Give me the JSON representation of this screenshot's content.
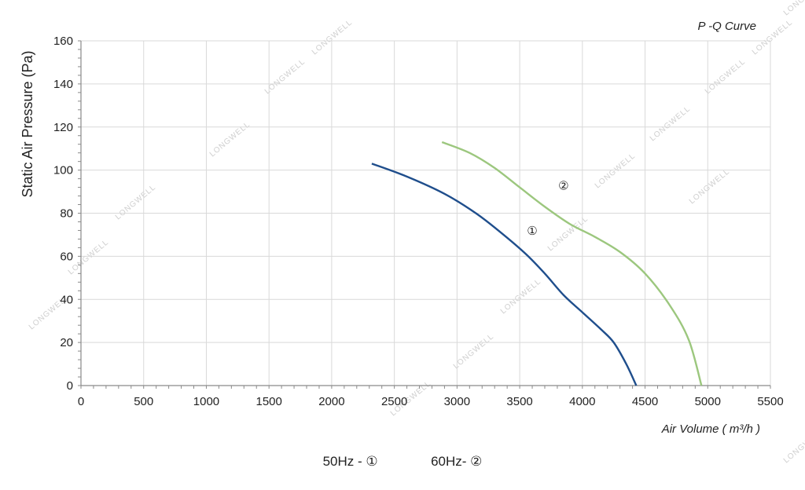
{
  "chart_data": {
    "type": "line",
    "title": "P -Q Curve",
    "xlabel": "Air Volume ( m³/h )",
    "ylabel": "Static Air Pressure  (Pa)",
    "xlim": [
      0,
      5500
    ],
    "ylim": [
      0,
      160
    ],
    "xticks": [
      0,
      500,
      1000,
      1500,
      2000,
      2500,
      3000,
      3500,
      4000,
      4500,
      5000,
      5500
    ],
    "yticks": [
      0,
      20,
      40,
      60,
      80,
      100,
      120,
      140,
      160
    ],
    "grid": true,
    "series": [
      {
        "name": "①",
        "color": "#1f4e8c",
        "points": [
          [
            2320,
            103
          ],
          [
            2600,
            97
          ],
          [
            2900,
            89
          ],
          [
            3150,
            80
          ],
          [
            3350,
            71
          ],
          [
            3550,
            61
          ],
          [
            3700,
            52
          ],
          [
            3850,
            42
          ],
          [
            4000,
            34
          ],
          [
            4150,
            26
          ],
          [
            4250,
            20
          ],
          [
            4350,
            10
          ],
          [
            4430,
            0
          ]
        ]
      },
      {
        "name": "②",
        "color": "#9cc77e",
        "points": [
          [
            2880,
            113
          ],
          [
            3100,
            108
          ],
          [
            3300,
            101
          ],
          [
            3500,
            92
          ],
          [
            3700,
            83
          ],
          [
            3900,
            75
          ],
          [
            4100,
            69
          ],
          [
            4300,
            62
          ],
          [
            4500,
            52
          ],
          [
            4700,
            37
          ],
          [
            4850,
            21
          ],
          [
            4950,
            0
          ]
        ]
      }
    ],
    "annotations": [
      {
        "text": "②",
        "x": 3850,
        "y": 91
      },
      {
        "text": "①",
        "x": 3600,
        "y": 70
      }
    ]
  },
  "legend": {
    "item1": "50Hz -  ①",
    "item2": "60Hz-  ②"
  },
  "watermark": "LONGWELL"
}
